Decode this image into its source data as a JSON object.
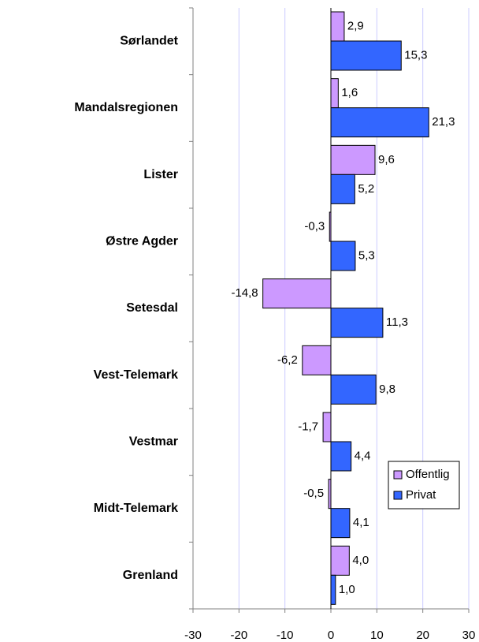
{
  "chart_data": {
    "type": "bar",
    "orientation": "horizontal",
    "categories": [
      "Sørlandet",
      "Mandalsregionen",
      "Lister",
      "Østre Agder",
      "Setesdal",
      "Vest-Telemark",
      "Vestmar",
      "Midt-Telemark",
      "Grenland"
    ],
    "series": [
      {
        "name": "Offentlig",
        "color": "#cc99ff",
        "values": [
          2.9,
          1.6,
          9.6,
          -0.3,
          -14.8,
          -6.2,
          -1.7,
          -0.5,
          4.0
        ],
        "value_labels": [
          "2,9",
          "1,6",
          "9,6",
          "-0,3",
          "-14,8",
          "-6,2",
          "-1,7",
          "-0,5",
          "4,0"
        ]
      },
      {
        "name": "Privat",
        "color": "#3366ff",
        "values": [
          15.3,
          21.3,
          5.2,
          5.3,
          11.3,
          9.8,
          4.4,
          4.1,
          1.0
        ],
        "value_labels": [
          "15,3",
          "21,3",
          "5,2",
          "5,3",
          "11,3",
          "9,8",
          "4,4",
          "4,1",
          "1,0"
        ]
      }
    ],
    "xlim": [
      -30,
      30
    ],
    "xticks": [
      -30,
      -20,
      -10,
      0,
      10,
      20,
      30
    ],
    "grid": true,
    "legend": "lower right"
  }
}
